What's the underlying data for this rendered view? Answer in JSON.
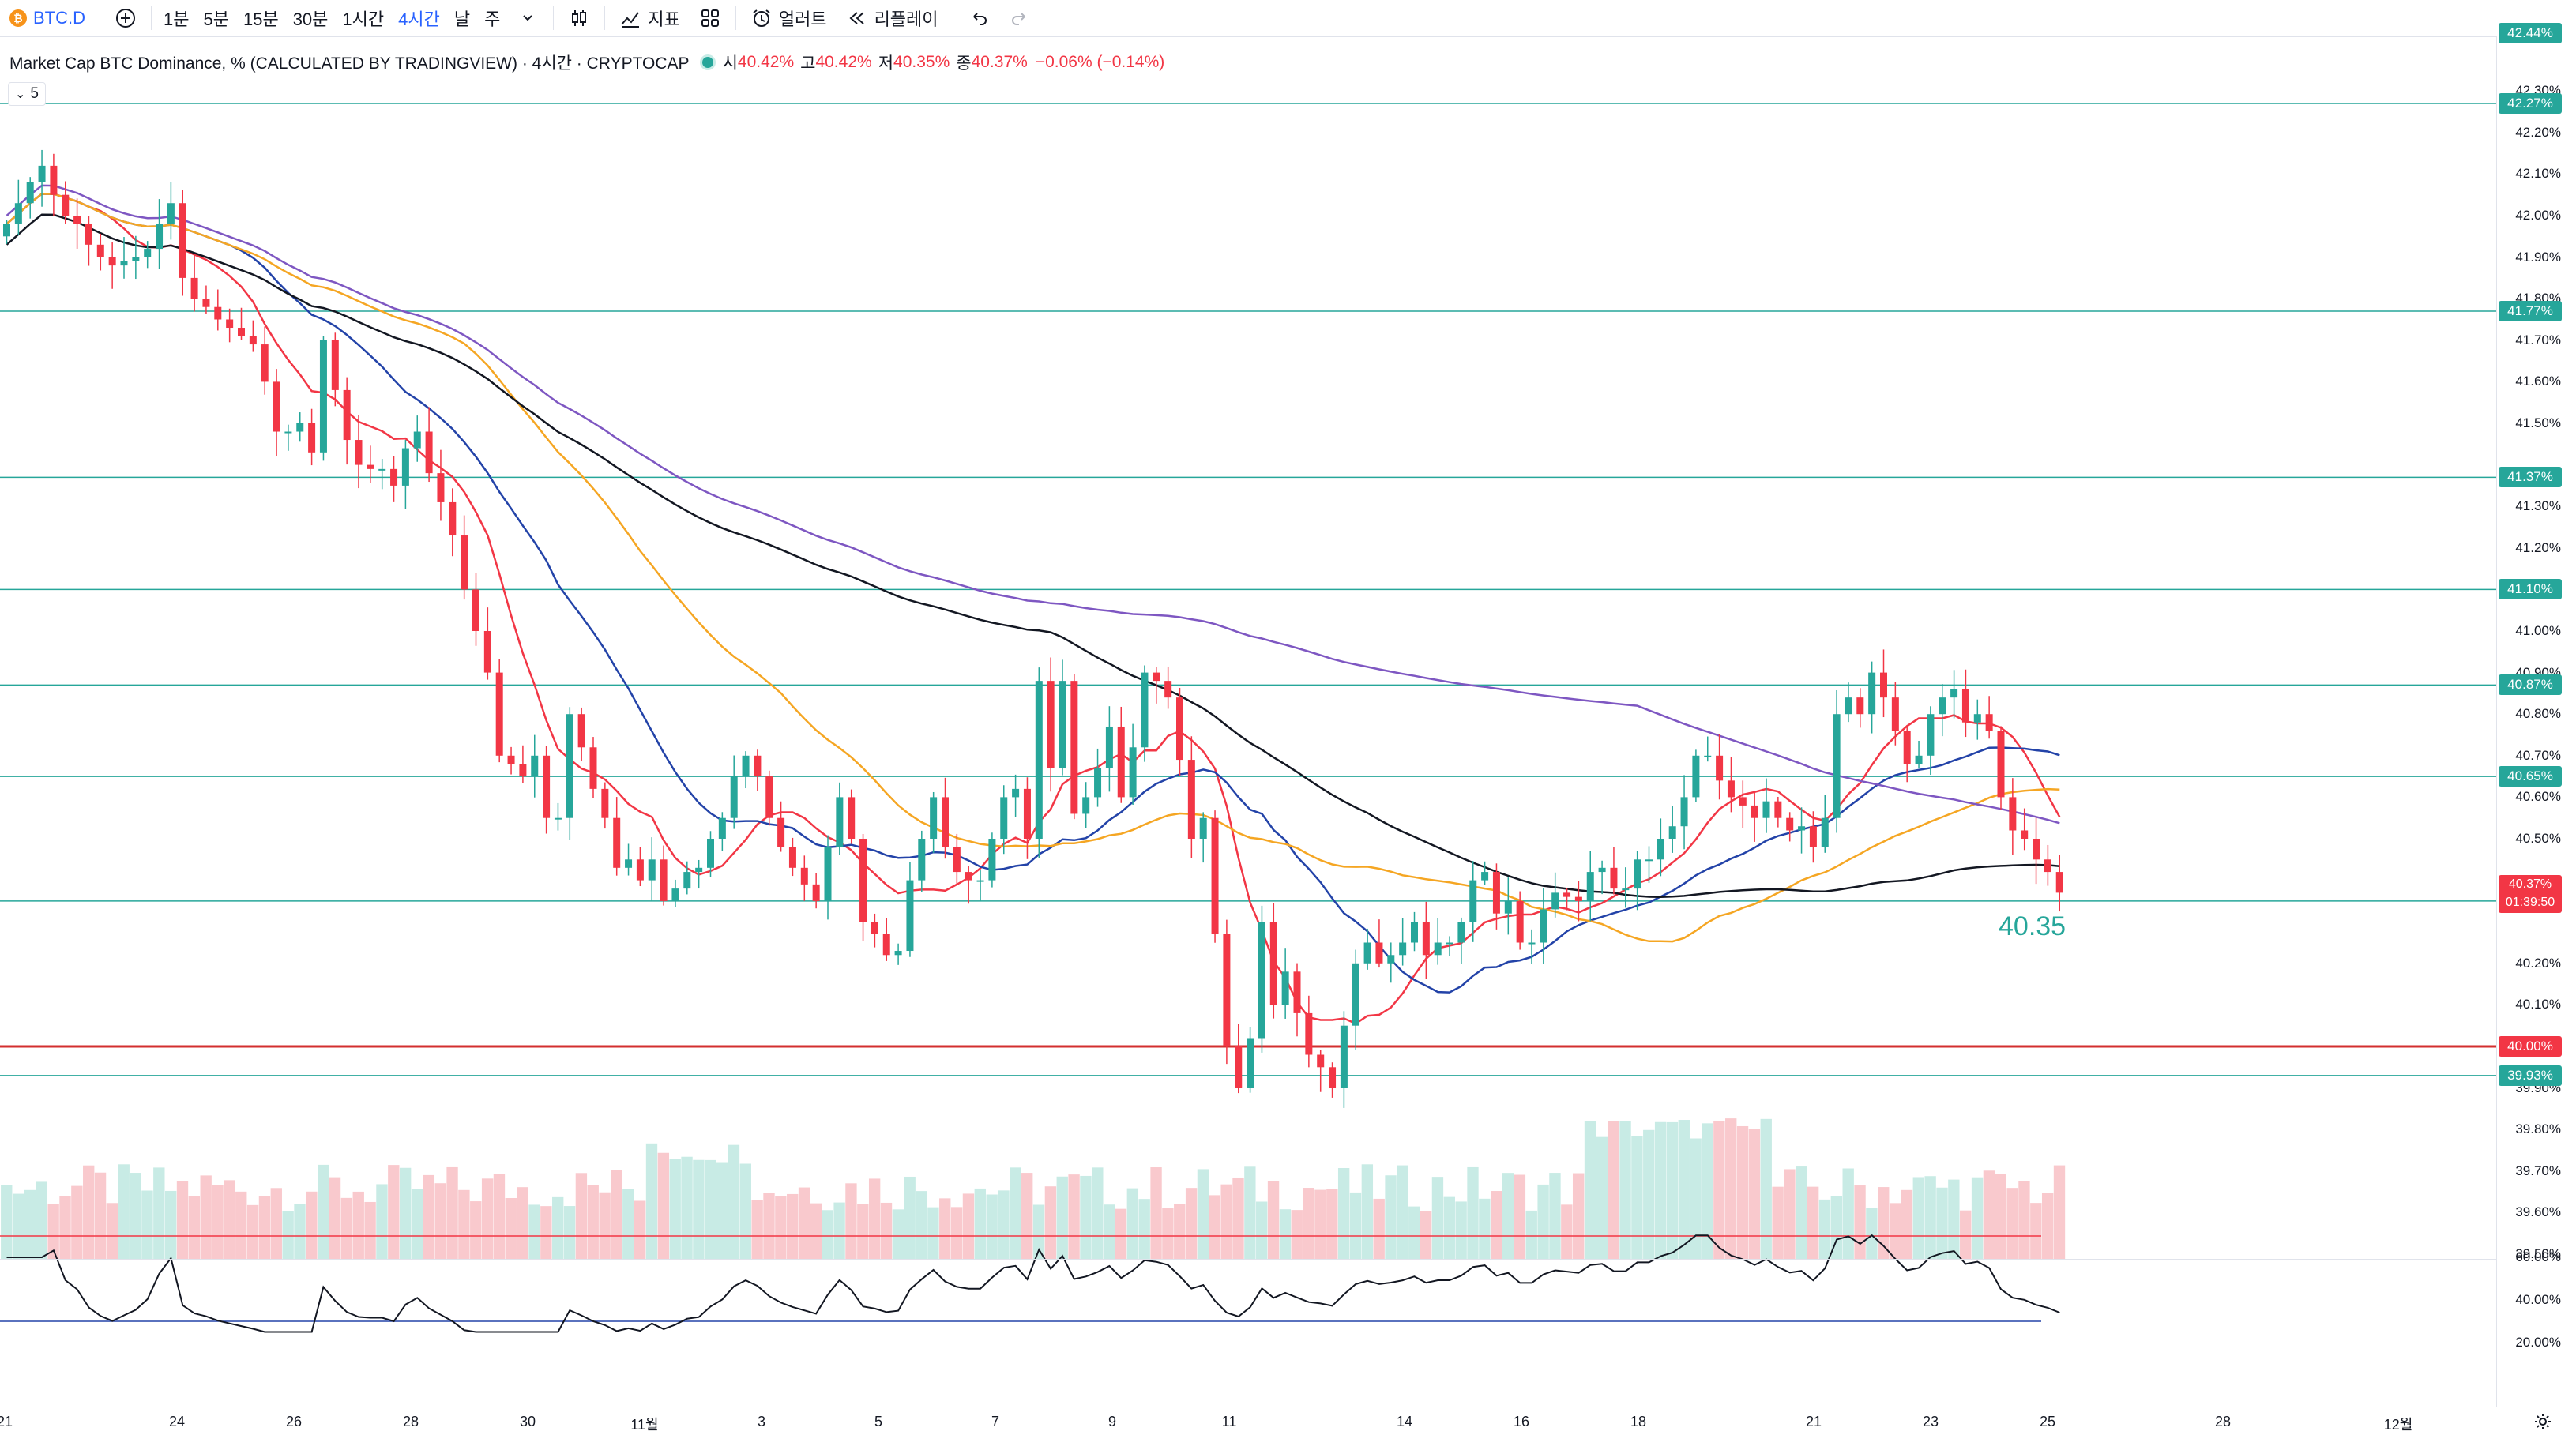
{
  "toolbar": {
    "symbol": "BTC.D",
    "symbol_badge": "₿",
    "intervals": [
      "1분",
      "5분",
      "15분",
      "30분",
      "1시간",
      "4시간",
      "날",
      "주"
    ],
    "active_interval": "4시간",
    "indicators_label": "지표",
    "alert_label": "얼러트",
    "replay_label": "리플레이"
  },
  "legend": {
    "title": "Market Cap BTC Dominance, % (CALCULATED BY TRADINGVIEW) · 4시간 · CRYPTOCAP",
    "open_label": "시",
    "open": "40.42%",
    "high_label": "고",
    "high": "40.42%",
    "low_label": "저",
    "low": "40.35%",
    "close_label": "종",
    "close": "40.37%",
    "change": "−0.06% (−0.14%)",
    "ma_chip": "5"
  },
  "price_axis": {
    "ticks": [
      "42.30%",
      "42.20%",
      "42.10%",
      "42.00%",
      "41.90%",
      "41.80%",
      "41.70%",
      "41.60%",
      "41.50%",
      "41.30%",
      "41.20%",
      "41.00%",
      "40.90%",
      "40.80%",
      "40.70%",
      "40.60%",
      "40.50%",
      "40.40%",
      "40.20%",
      "40.10%",
      "39.90%",
      "39.80%",
      "39.70%",
      "39.60%",
      "39.50%"
    ],
    "level_labels": [
      "42.44%",
      "42.27%",
      "41.77%",
      "41.37%",
      "41.10%",
      "40.87%",
      "40.65%",
      "40.35%",
      "39.93%"
    ],
    "red_label": "40.00%",
    "current_price": "40.37%",
    "countdown": "01:39:50"
  },
  "rsi_axis": {
    "ticks": [
      "60.00%",
      "40.00%",
      "20.00%"
    ]
  },
  "time_axis": {
    "ticks": [
      "21",
      "24",
      "26",
      "28",
      "30",
      "11월",
      "3",
      "5",
      "7",
      "9",
      "11",
      "14",
      "16",
      "18",
      "21",
      "23",
      "25",
      "28",
      "12월"
    ]
  },
  "level_text": "40.35",
  "colors": {
    "up": "#26a69a",
    "down": "#f23645",
    "level": "#26a69a",
    "key_level": "#d32f2f",
    "ma_red": "#f23645",
    "ma_blue": "#2343a8",
    "ma_orange": "#f5a623",
    "ma_black": "#131722",
    "ma_purple": "#7e57c2"
  },
  "chart_data": {
    "type": "candlestick",
    "y_unit": "%",
    "ylim": [
      39.5,
      42.44
    ],
    "x_ticks": [
      "21",
      "24",
      "26",
      "28",
      "30",
      "11월",
      "3",
      "5",
      "7",
      "9",
      "11",
      "14",
      "16",
      "18",
      "21",
      "23",
      "25",
      "28",
      "12월"
    ],
    "horizontal_levels": [
      42.44,
      42.27,
      41.77,
      41.37,
      41.1,
      40.87,
      40.65,
      40.35,
      40.0,
      39.93
    ],
    "candle_close": [
      41.98,
      42.03,
      42.08,
      42.12,
      42.05,
      42.0,
      41.98,
      41.93,
      41.9,
      41.88,
      41.89,
      41.9,
      41.92,
      41.98,
      42.03,
      41.85,
      41.8,
      41.78,
      41.75,
      41.73,
      41.71,
      41.69,
      41.6,
      41.48,
      41.48,
      41.5,
      41.43,
      41.7,
      41.58,
      41.46,
      41.4,
      41.39,
      41.39,
      41.35,
      41.44,
      41.48,
      41.38,
      41.31,
      41.23,
      41.1,
      41.0,
      40.9,
      40.7,
      40.68,
      40.65,
      40.7,
      40.55,
      40.55,
      40.8,
      40.72,
      40.62,
      40.55,
      40.43,
      40.45,
      40.4,
      40.45,
      40.35,
      40.38,
      40.42,
      40.43,
      40.5,
      40.55,
      40.65,
      40.7,
      40.65,
      40.55,
      40.48,
      40.43,
      40.39,
      40.35,
      40.48,
      40.6,
      40.5,
      40.3,
      40.27,
      40.22,
      40.23,
      40.4,
      40.5,
      40.6,
      40.48,
      40.42,
      40.4,
      40.4,
      40.5,
      40.6,
      40.62,
      40.5,
      40.88,
      40.67,
      40.88,
      40.56,
      40.6,
      40.67,
      40.77,
      40.6,
      40.72,
      40.9,
      40.88,
      40.84,
      40.69,
      40.5,
      40.55,
      40.27,
      40.0,
      39.9,
      40.02,
      40.3,
      40.1,
      40.18,
      40.08,
      39.98,
      39.95,
      39.9,
      40.05,
      40.2,
      40.25,
      40.2,
      40.22,
      40.25,
      40.3,
      40.22,
      40.25,
      40.25,
      40.3,
      40.4,
      40.42,
      40.32,
      40.35,
      40.25,
      40.25,
      40.33,
      40.37,
      40.36,
      40.35,
      40.42,
      40.43,
      40.38,
      40.38,
      40.45,
      40.45,
      40.5,
      40.53,
      40.6,
      40.7,
      40.7,
      40.64,
      40.6,
      40.58,
      40.55,
      40.59,
      40.55,
      40.52,
      40.53,
      40.48,
      40.55,
      40.8,
      40.84,
      40.8,
      40.9,
      40.84,
      40.76,
      40.68,
      40.7,
      40.8,
      40.84,
      40.86,
      40.78,
      40.8,
      40.76,
      40.6,
      40.52,
      40.5,
      40.45,
      40.42,
      40.37
    ],
    "ma_lines": [
      "red",
      "blue",
      "orange",
      "black",
      "purple"
    ],
    "rsi": {
      "upper": 70,
      "lower": 30,
      "ticks": [
        60,
        40,
        20
      ]
    }
  }
}
